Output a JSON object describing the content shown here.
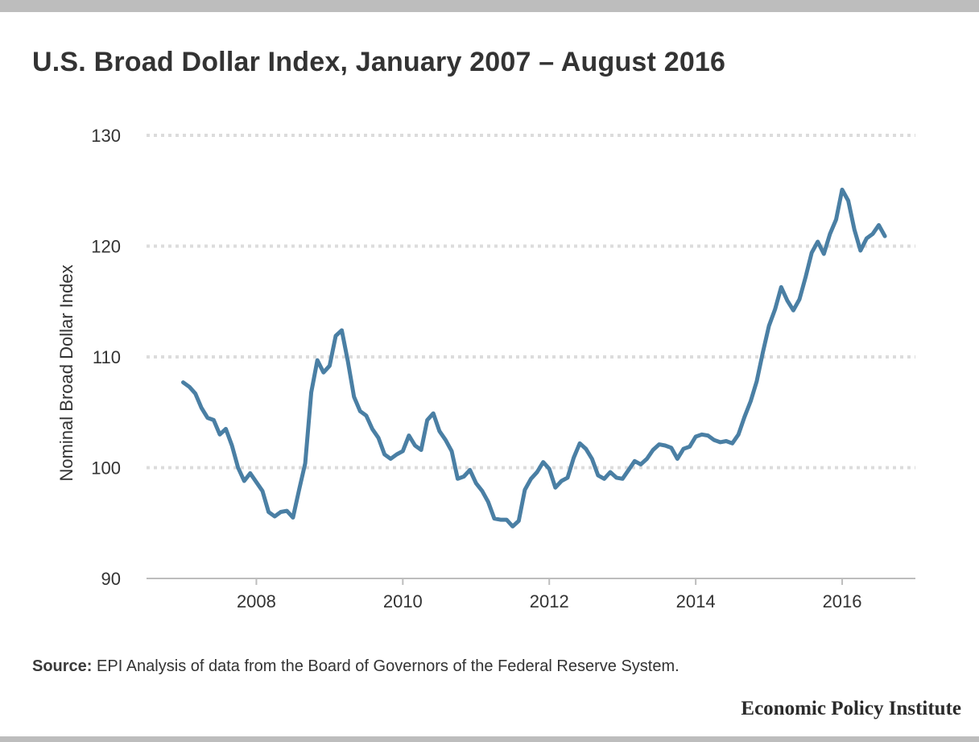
{
  "title": "U.S. Broad Dollar Index, January 2007 – August 2016",
  "source": {
    "label": "Source:",
    "text": " EPI Analysis of data from the Board of Governors of the Federal Reserve System."
  },
  "brand": "Economic Policy Institute",
  "colors": {
    "line": "#4a7fa4",
    "grid": "#dcdcdc",
    "axis": "#bdbdbd",
    "text": "#333333"
  },
  "chart_data": {
    "type": "line",
    "title": "U.S. Broad Dollar Index, January 2007 – August 2016",
    "xlabel": "",
    "ylabel": "Nominal Broad Dollar Index",
    "xlim": [
      2006.5,
      2017.0
    ],
    "ylim": [
      90,
      130
    ],
    "grid": true,
    "x_ticks": [
      2008,
      2010,
      2012,
      2014,
      2016
    ],
    "x_tick_labels": [
      "2008",
      "2010",
      "2012",
      "2014",
      "2016"
    ],
    "y_ticks": [
      90,
      100,
      110,
      120,
      130
    ],
    "y_tick_labels": [
      "90",
      "100",
      "110",
      "120",
      "130"
    ],
    "series": [
      {
        "name": "Nominal Broad Dollar Index",
        "start": "2007-01",
        "frequency": "monthly",
        "values": [
          107.7,
          107.3,
          106.7,
          105.4,
          104.5,
          104.3,
          103.0,
          103.5,
          102.0,
          100.0,
          98.8,
          99.5,
          98.7,
          97.9,
          96.0,
          95.6,
          96.0,
          96.1,
          95.5,
          98.0,
          100.4,
          106.8,
          109.7,
          108.6,
          109.2,
          111.9,
          112.4,
          109.6,
          106.4,
          105.1,
          104.7,
          103.5,
          102.7,
          101.2,
          100.8,
          101.2,
          101.5,
          102.9,
          102.0,
          101.6,
          104.3,
          104.9,
          103.3,
          102.5,
          101.5,
          99.0,
          99.2,
          99.8,
          98.6,
          97.9,
          96.9,
          95.4,
          95.3,
          95.3,
          94.7,
          95.2,
          98.0,
          99.0,
          99.6,
          100.5,
          99.9,
          98.2,
          98.8,
          99.1,
          100.9,
          102.2,
          101.7,
          100.8,
          99.3,
          99.0,
          99.6,
          99.1,
          99.0,
          99.8,
          100.6,
          100.3,
          100.8,
          101.6,
          102.1,
          102.0,
          101.8,
          100.8,
          101.7,
          101.9,
          102.8,
          103.0,
          102.9,
          102.5,
          102.3,
          102.4,
          102.2,
          103.0,
          104.6,
          106.0,
          107.8,
          110.4,
          112.8,
          114.3,
          116.3,
          115.1,
          114.2,
          115.2,
          117.2,
          119.4,
          120.4,
          119.3,
          121.1,
          122.4,
          125.1,
          124.1,
          121.5,
          119.6,
          120.7,
          121.1,
          121.9,
          120.9
        ]
      }
    ]
  }
}
